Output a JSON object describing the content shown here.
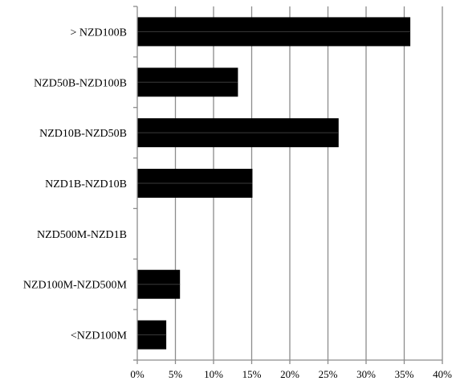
{
  "chart_data": {
    "type": "bar",
    "orientation": "horizontal",
    "categories": [
      "> NZD100B",
      "NZD50B-NZD100B",
      "NZD10B-NZD50B",
      "NZD1B-NZD10B",
      "NZD500M-NZD1B",
      "NZD100M-NZD500M",
      "<NZD100M"
    ],
    "values": [
      35.8,
      13.2,
      26.4,
      15.1,
      0,
      5.6,
      3.8
    ],
    "value_unit": "%",
    "xlim": [
      0,
      40
    ],
    "x_ticks": [
      "0%",
      "5%",
      "10%",
      "15%",
      "20%",
      "25%",
      "30%",
      "35%",
      "40%"
    ],
    "grid": "vertical",
    "legend": "none",
    "bar_color": "#000000",
    "grid_color": "#8c8c8c",
    "title": "",
    "xlabel": "",
    "ylabel": ""
  }
}
